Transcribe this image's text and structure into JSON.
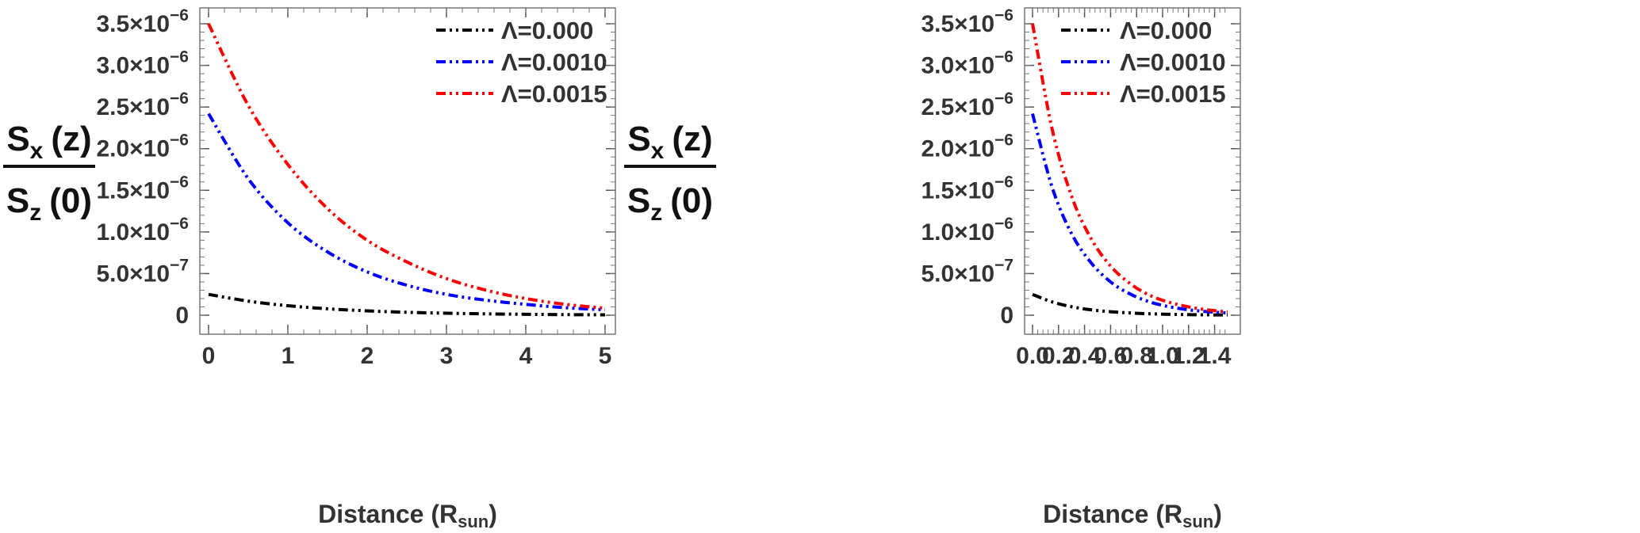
{
  "chart_data": [
    {
      "type": "line",
      "xlabel": "Distance (R",
      "xlabel_sub": "sun",
      "xlabel_close": ")",
      "ylabel_num": {
        "main": "S",
        "sub": "x",
        "tail": "(z)"
      },
      "ylabel_den": {
        "main": "S",
        "sub": "z",
        "tail": "(0)"
      },
      "xlim": [
        0,
        5
      ],
      "ylim": [
        0,
        3.5e-06
      ],
      "x_ticks": [
        {
          "value": 0,
          "label": "0"
        },
        {
          "value": 1,
          "label": "1"
        },
        {
          "value": 2,
          "label": "2"
        },
        {
          "value": 3,
          "label": "3"
        },
        {
          "value": 4,
          "label": "4"
        },
        {
          "value": 5,
          "label": "5"
        }
      ],
      "y_ticks": [
        {
          "value": 0,
          "mant": "0",
          "exp": ""
        },
        {
          "value": 5e-07,
          "mant": "5.0×10",
          "exp": "−7"
        },
        {
          "value": 1e-06,
          "mant": "1.0×10",
          "exp": "−6"
        },
        {
          "value": 1.5e-06,
          "mant": "1.5×10",
          "exp": "−6"
        },
        {
          "value": 2e-06,
          "mant": "2.0×10",
          "exp": "−6"
        },
        {
          "value": 2.5e-06,
          "mant": "2.5×10",
          "exp": "−6"
        },
        {
          "value": 3e-06,
          "mant": "3.0×10",
          "exp": "−6"
        },
        {
          "value": 3.5e-06,
          "mant": "3.5×10",
          "exp": "−6"
        }
      ],
      "grid": false,
      "legend_position": "top-right",
      "series": [
        {
          "name": "Λ=0.000",
          "color": "#000000",
          "x": [
            0,
            0.5,
            1,
            1.5,
            2,
            2.5,
            3,
            3.5,
            4,
            4.5,
            5
          ],
          "values": [
            2.5e-07,
            1.69e-07,
            1.14e-07,
            7.7e-08,
            5.2e-08,
            3.5e-08,
            2.4e-08,
            1.6e-08,
            1.1e-08,
            7e-09,
            5e-09
          ]
        },
        {
          "name": "Λ=0.0010",
          "color": "#0000ff",
          "x": [
            0,
            0.5,
            1,
            1.5,
            2,
            2.5,
            3,
            3.5,
            4,
            4.5,
            5
          ],
          "values": [
            2.42e-06,
            1.64e-06,
            1.11e-06,
            7.6e-07,
            5.2e-07,
            3.6e-07,
            2.5e-07,
            1.8e-07,
            1.3e-07,
            9e-08,
            6.5e-08
          ]
        },
        {
          "name": "Λ=0.0015",
          "color": "#ff0000",
          "x": [
            0,
            0.5,
            1,
            1.5,
            2,
            2.5,
            3,
            3.5,
            4,
            4.5,
            5
          ],
          "values": [
            3.5e-06,
            2.52e-06,
            1.81e-06,
            1.28e-06,
            9e-07,
            6.4e-07,
            4.4e-07,
            3e-07,
            2e-07,
            1.3e-07,
            8.5e-08
          ]
        }
      ]
    },
    {
      "type": "line",
      "xlabel": "Distance (R",
      "xlabel_sub": "sun",
      "xlabel_close": ")",
      "ylabel_num": {
        "main": "S",
        "sub": "x",
        "tail": "(z)"
      },
      "ylabel_den": {
        "main": "S",
        "sub": "z",
        "tail": "(0)"
      },
      "xlim": [
        0,
        1.5
      ],
      "ylim": [
        0,
        3.5e-06
      ],
      "x_ticks": [
        {
          "value": 0,
          "label": "0.0"
        },
        {
          "value": 0.2,
          "label": "0.2"
        },
        {
          "value": 0.4,
          "label": "0.4"
        },
        {
          "value": 0.6,
          "label": "0.6"
        },
        {
          "value": 0.8,
          "label": "0.8"
        },
        {
          "value": 1.0,
          "label": "1.0"
        },
        {
          "value": 1.2,
          "label": "1.2"
        },
        {
          "value": 1.4,
          "label": "1.4"
        }
      ],
      "y_ticks": [
        {
          "value": 0,
          "mant": "0",
          "exp": ""
        },
        {
          "value": 5e-07,
          "mant": "5.0×10",
          "exp": "−7"
        },
        {
          "value": 1e-06,
          "mant": "1.0×10",
          "exp": "−6"
        },
        {
          "value": 1.5e-06,
          "mant": "1.5×10",
          "exp": "−6"
        },
        {
          "value": 2e-06,
          "mant": "2.0×10",
          "exp": "−6"
        },
        {
          "value": 2.5e-06,
          "mant": "2.5×10",
          "exp": "−6"
        },
        {
          "value": 3e-06,
          "mant": "3.0×10",
          "exp": "−6"
        },
        {
          "value": 3.5e-06,
          "mant": "3.5×10",
          "exp": "−6"
        }
      ],
      "grid": false,
      "legend_position": "top-right",
      "series": [
        {
          "name": "Λ=0.000",
          "color": "#000000",
          "x": [
            0,
            0.15,
            0.3,
            0.45,
            0.6,
            0.75,
            0.9,
            1.05,
            1.2,
            1.35,
            1.5
          ],
          "values": [
            2.5e-07,
            1.6e-07,
            1.02e-07,
            6.5e-08,
            4.2e-08,
            2.7e-08,
            1.7e-08,
            1.1e-08,
            7e-09,
            4.5e-09,
            3e-09
          ]
        },
        {
          "name": "Λ=0.0010",
          "color": "#0000ff",
          "x": [
            0,
            0.15,
            0.3,
            0.45,
            0.6,
            0.75,
            0.9,
            1.05,
            1.2,
            1.35,
            1.5
          ],
          "values": [
            2.42e-06,
            1.54e-06,
            9.8e-07,
            6.3e-07,
            4e-07,
            2.55e-07,
            1.6e-07,
            1.02e-07,
            6.5e-08,
            4.2e-08,
            2.7e-08
          ]
        },
        {
          "name": "Λ=0.0015",
          "color": "#ff0000",
          "x": [
            0,
            0.15,
            0.3,
            0.45,
            0.6,
            0.75,
            0.9,
            1.05,
            1.2,
            1.35,
            1.5
          ],
          "values": [
            3.5e-06,
            2.24e-06,
            1.43e-06,
            9.2e-07,
            5.9e-07,
            3.8e-07,
            2.4e-07,
            1.55e-07,
            1e-07,
            6.3e-08,
            4e-08
          ]
        }
      ]
    }
  ]
}
